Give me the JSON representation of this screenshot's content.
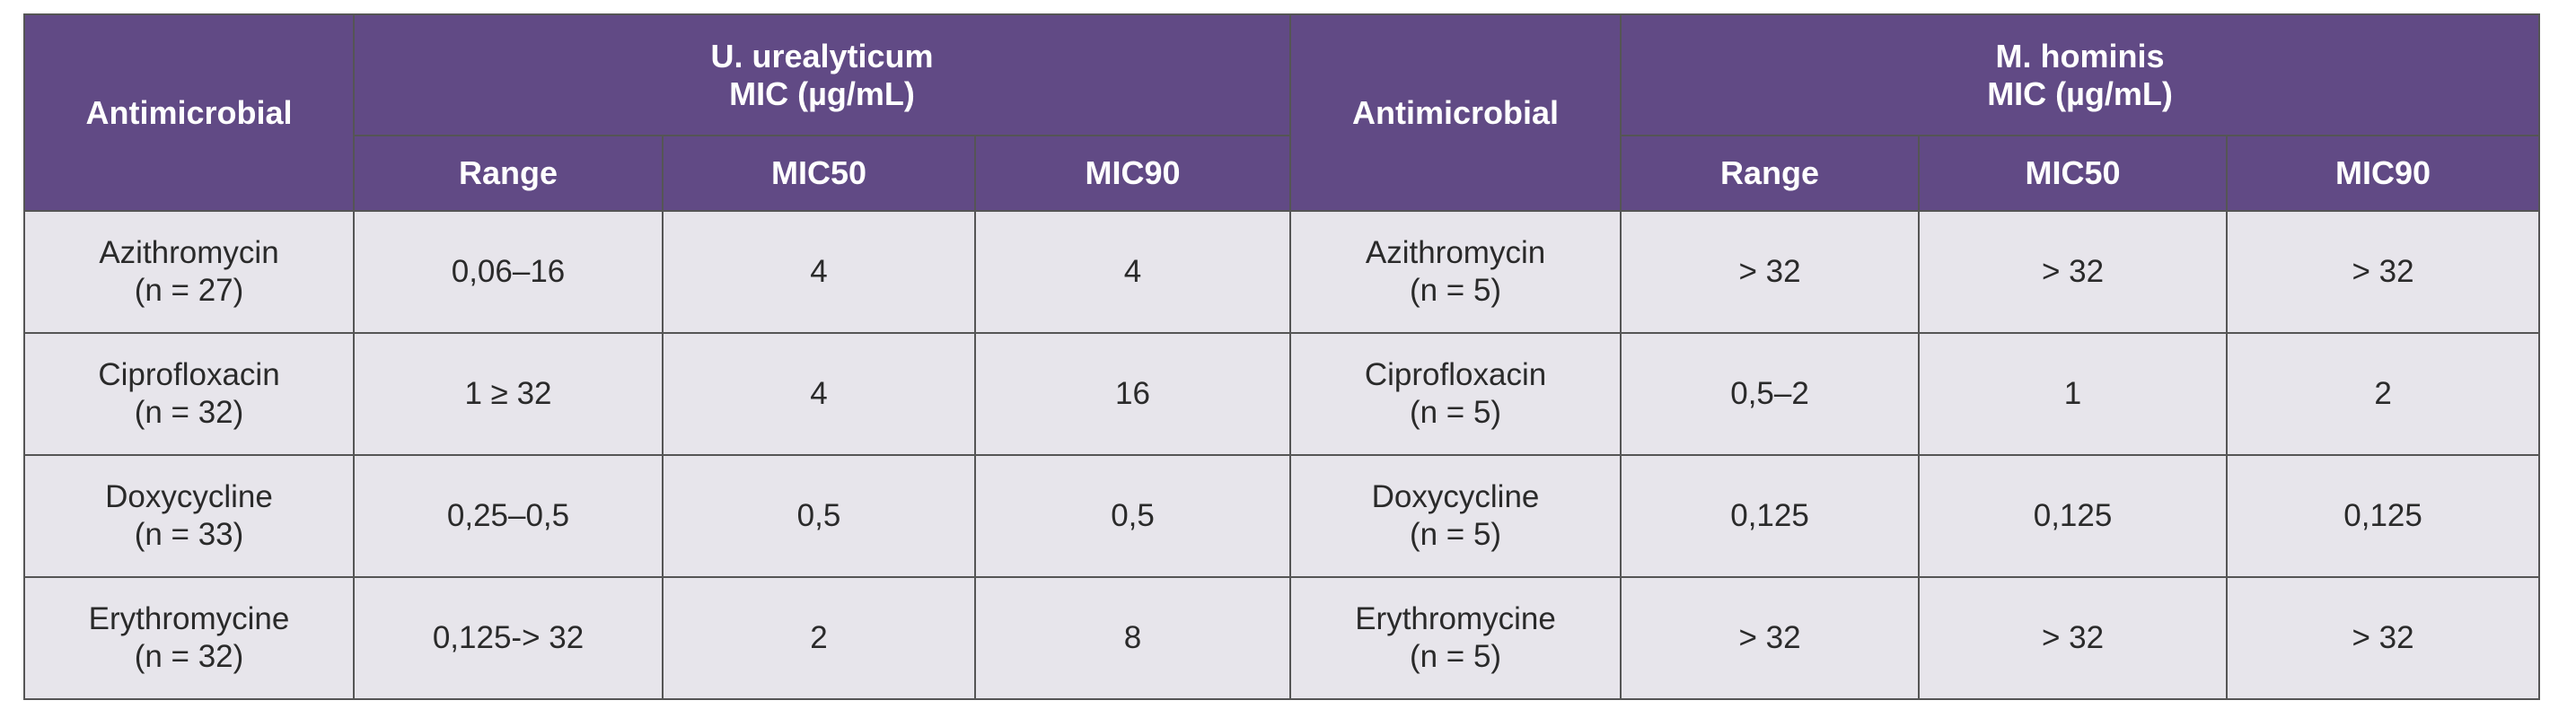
{
  "table": {
    "header_groups": [
      "Antimicrobial",
      "U. urealyticum\nMIC (µg/mL)",
      "Antimicrobial",
      "M. hominis\nMIC (µg/mL)"
    ],
    "subheaders": [
      "Range",
      "MIC50",
      "MIC90",
      "Range",
      "MIC50",
      "MIC90"
    ],
    "rows": [
      [
        "Azithromycin\n(n = 27)",
        "0,06–16",
        "4",
        "4",
        "Azithromycin\n(n = 5)",
        "> 32",
        "> 32",
        "> 32"
      ],
      [
        "Ciprofloxacin\n(n = 32)",
        "1 ≥ 32",
        "4",
        "16",
        "Ciprofloxacin\n(n = 5)",
        "0,5–2",
        "1",
        "2"
      ],
      [
        "Doxycycline\n(n = 33)",
        "0,25–0,5",
        "0,5",
        "0,5",
        "Doxycycline\n(n = 5)",
        "0,125",
        "0,125",
        "0,125"
      ],
      [
        "Erythromycine\n(n = 32)",
        "0,125-> 32",
        "2",
        "8",
        "Erythromycine\n(n = 5)",
        "> 32",
        "> 32",
        "> 32"
      ]
    ]
  }
}
